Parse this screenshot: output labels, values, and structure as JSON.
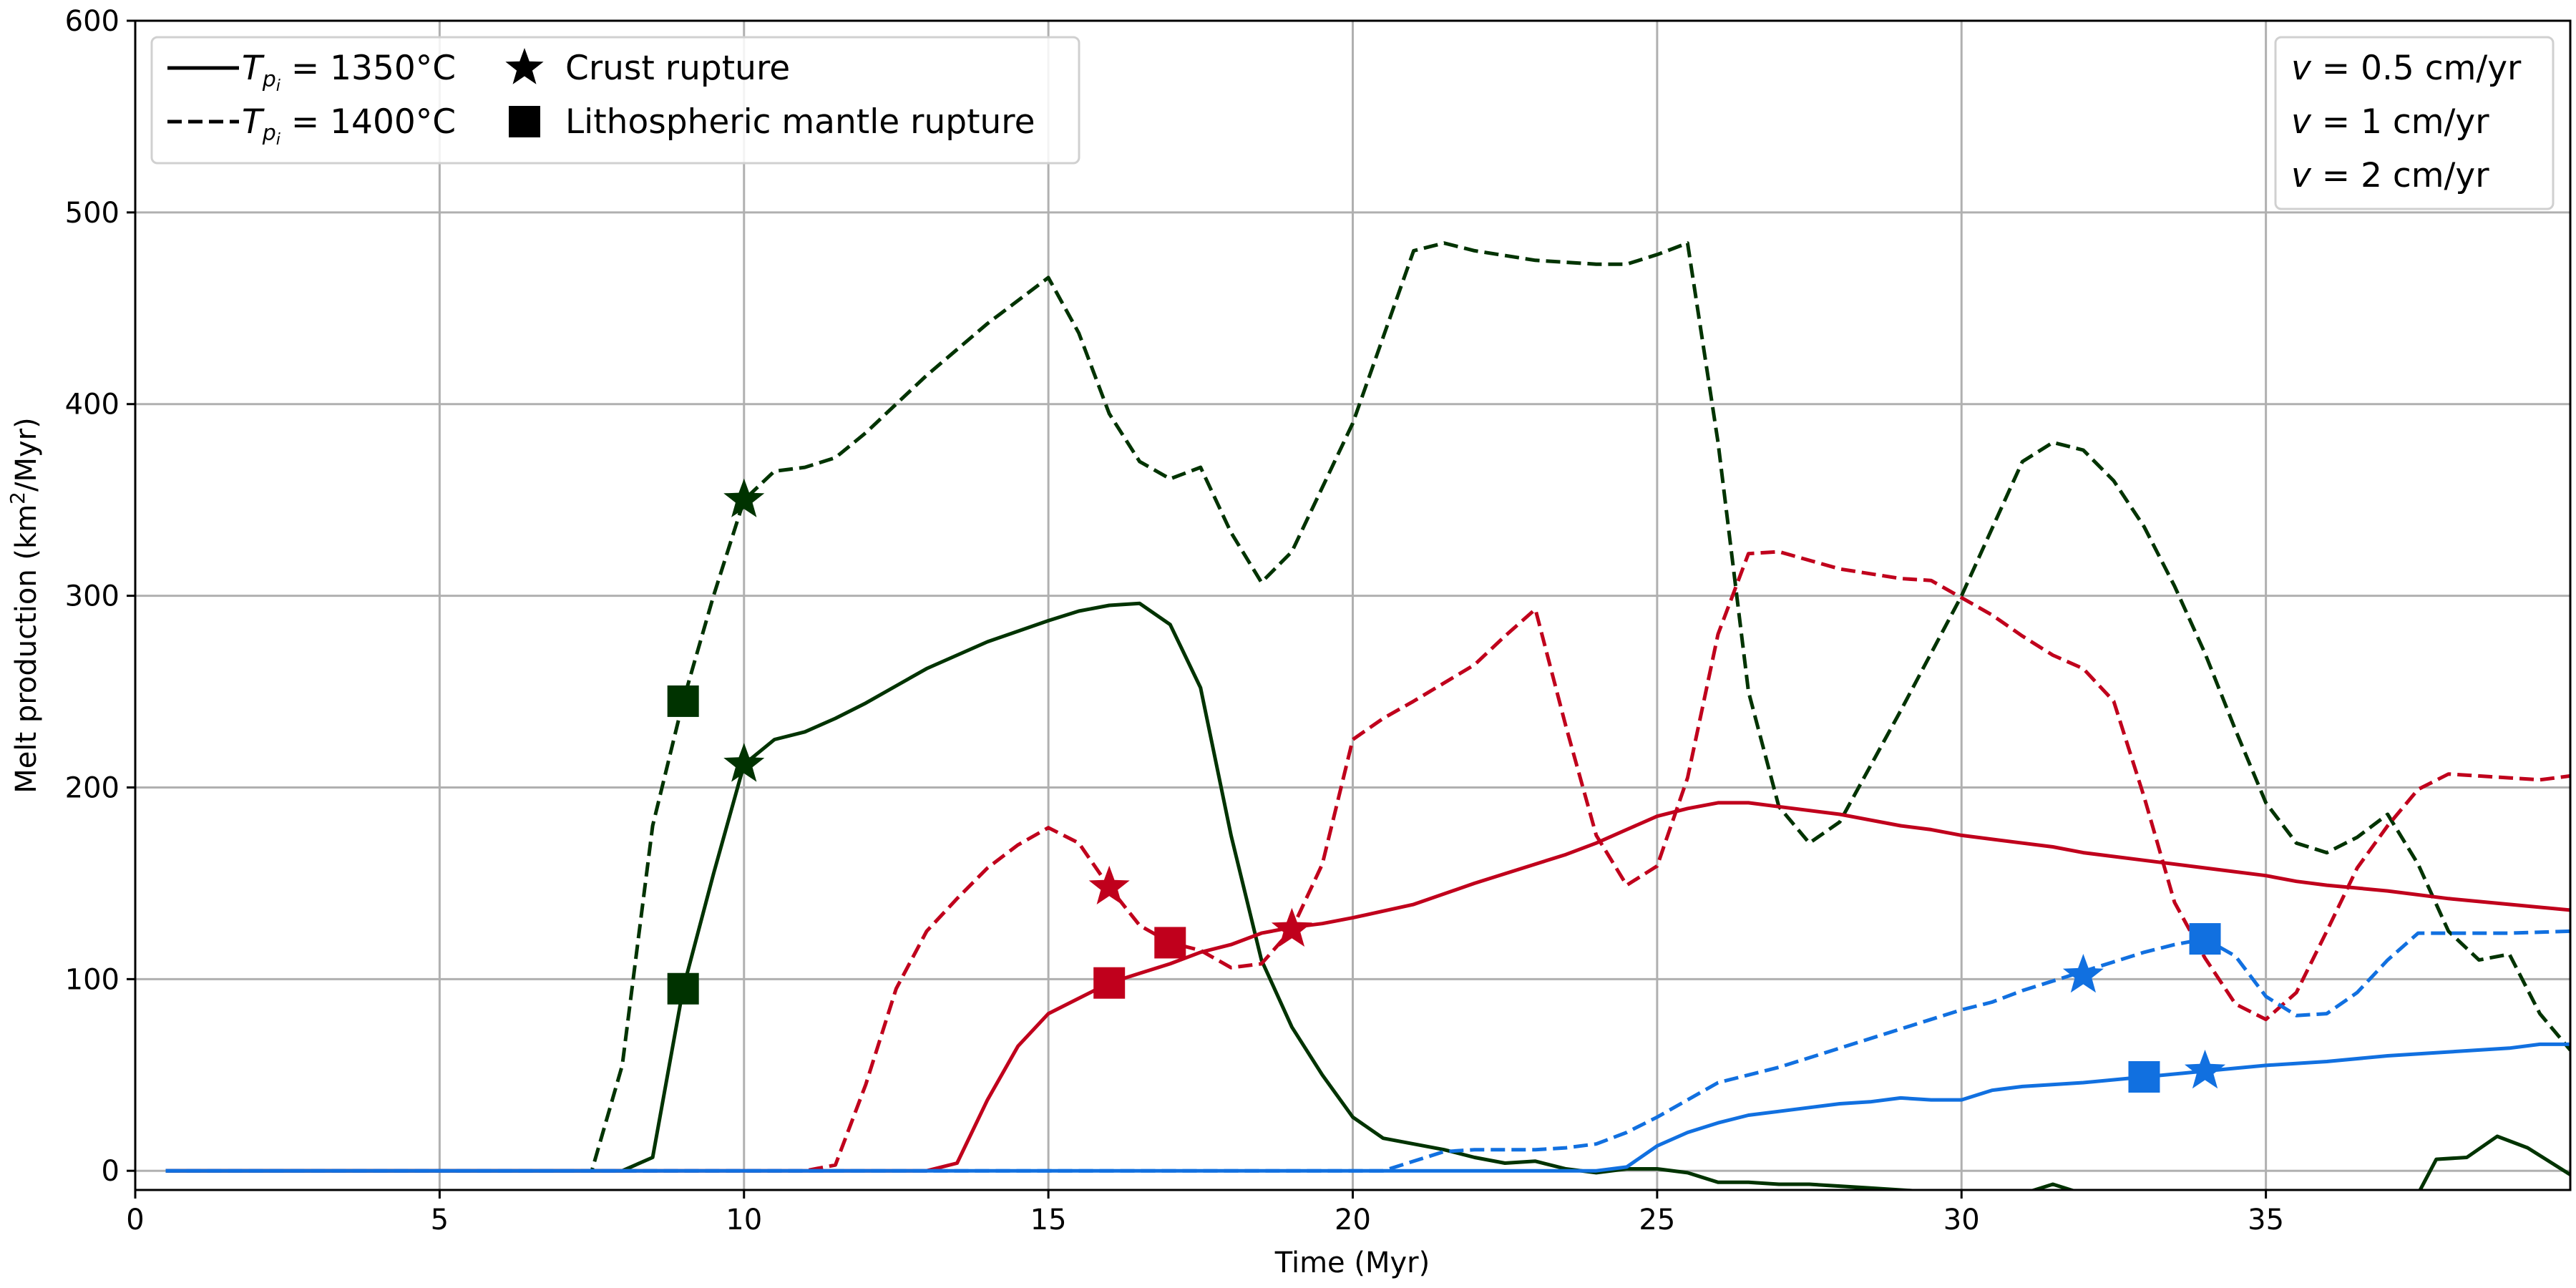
{
  "chart_data": {
    "type": "line",
    "xlabel": "Time (Myr)",
    "ylabel_prefix": "Melt production (km",
    "ylabel_sup": "2",
    "ylabel_suffix": "/Myr)",
    "xlim": [
      0,
      40
    ],
    "ylim": [
      -10,
      600
    ],
    "xticks": [
      0,
      5,
      10,
      15,
      20,
      25,
      30,
      35
    ],
    "yticks": [
      0,
      100,
      200,
      300,
      400,
      500,
      600
    ],
    "grid": true,
    "colors": {
      "slow": "#1170e0",
      "medium": "#c0001c",
      "fast": "#003300"
    },
    "legend_style": {
      "placement": "top-left",
      "solid_prefix": "T",
      "solid_sub": "p",
      "solid_subsub": "i",
      "solid_value": " = 1350°C",
      "dashed_prefix": "T",
      "dashed_sub": "p",
      "dashed_subsub": "i",
      "dashed_value": " = 1400°C",
      "star_label": "Crust rupture",
      "square_label": "Lithospheric mantle rupture"
    },
    "legend_velocity": {
      "placement": "top-right",
      "items": [
        {
          "var": "v",
          "rest": " = 0.5 cm/yr",
          "color_key": "slow"
        },
        {
          "var": "v",
          "rest": " = 1 cm/yr",
          "color_key": "medium"
        },
        {
          "var": "v",
          "rest": " = 2 cm/yr",
          "color_key": "fast"
        }
      ]
    },
    "series": [
      {
        "color_key": "fast",
        "dash": false,
        "points": [
          [
            0.5,
            0
          ],
          [
            7.5,
            0
          ],
          [
            8,
            0
          ],
          [
            8.5,
            7
          ],
          [
            9,
            95
          ],
          [
            9.5,
            155
          ],
          [
            10,
            212
          ],
          [
            10.5,
            225
          ],
          [
            11,
            229
          ],
          [
            11.5,
            236
          ],
          [
            12,
            244
          ],
          [
            12.5,
            253
          ],
          [
            13,
            262
          ],
          [
            14,
            276
          ],
          [
            15,
            287
          ],
          [
            15.5,
            292
          ],
          [
            16,
            295
          ],
          [
            16.5,
            296
          ],
          [
            17,
            285
          ],
          [
            17.5,
            252
          ],
          [
            18,
            175
          ],
          [
            18.5,
            110
          ],
          [
            19,
            75
          ],
          [
            19.5,
            50
          ],
          [
            20,
            28
          ],
          [
            20.5,
            17
          ],
          [
            21,
            14
          ],
          [
            21.5,
            11
          ],
          [
            22,
            7
          ],
          [
            22.5,
            4
          ],
          [
            23,
            5
          ],
          [
            23.5,
            1
          ],
          [
            24,
            -1
          ],
          [
            24.5,
            1
          ],
          [
            25,
            1
          ],
          [
            25.5,
            -1
          ],
          [
            26,
            -6
          ],
          [
            26.5,
            -6
          ],
          [
            27,
            -7
          ],
          [
            27.5,
            -7
          ],
          [
            28,
            -8
          ],
          [
            28.5,
            -9
          ],
          [
            29,
            -10
          ],
          [
            29.5,
            -11
          ],
          [
            30,
            -12
          ],
          [
            30.5,
            -12
          ],
          [
            31,
            -12
          ],
          [
            31.5,
            -7
          ],
          [
            32,
            -12
          ],
          [
            33,
            -14
          ],
          [
            35,
            -14
          ],
          [
            37.5,
            -12
          ],
          [
            37.8,
            6
          ],
          [
            38.3,
            7
          ],
          [
            38.8,
            18
          ],
          [
            39.3,
            12
          ],
          [
            40,
            -2
          ]
        ]
      },
      {
        "color_key": "fast",
        "dash": true,
        "points": [
          [
            0.5,
            0
          ],
          [
            7.5,
            0
          ],
          [
            8,
            55
          ],
          [
            8.5,
            180
          ],
          [
            9,
            245
          ],
          [
            9.5,
            300
          ],
          [
            10,
            350
          ],
          [
            10.5,
            365
          ],
          [
            11,
            367
          ],
          [
            11.5,
            372
          ],
          [
            12,
            385
          ],
          [
            12.5,
            400
          ],
          [
            13,
            415
          ],
          [
            14,
            442
          ],
          [
            15,
            466
          ],
          [
            15.5,
            437
          ],
          [
            16,
            395
          ],
          [
            16.5,
            370
          ],
          [
            17,
            361
          ],
          [
            17.5,
            367
          ],
          [
            18,
            333
          ],
          [
            18.5,
            307
          ],
          [
            19,
            323
          ],
          [
            20,
            390
          ],
          [
            21,
            480
          ],
          [
            21.5,
            484
          ],
          [
            22,
            480
          ],
          [
            23,
            475
          ],
          [
            24,
            473
          ],
          [
            24.5,
            473
          ],
          [
            25,
            478
          ],
          [
            25.5,
            484
          ],
          [
            26,
            380
          ],
          [
            26.5,
            250
          ],
          [
            27,
            190
          ],
          [
            27.5,
            171
          ],
          [
            28,
            182
          ],
          [
            29,
            240
          ],
          [
            30,
            300
          ],
          [
            31,
            370
          ],
          [
            31.5,
            380
          ],
          [
            32,
            376
          ],
          [
            32.5,
            360
          ],
          [
            33,
            336
          ],
          [
            33.5,
            305
          ],
          [
            34,
            270
          ],
          [
            34.5,
            230
          ],
          [
            35,
            192
          ],
          [
            35.5,
            171
          ],
          [
            36,
            166
          ],
          [
            36.5,
            174
          ],
          [
            37,
            186
          ],
          [
            37.5,
            160
          ],
          [
            38,
            125
          ],
          [
            38.5,
            110
          ],
          [
            39,
            113
          ],
          [
            39.5,
            82
          ],
          [
            40,
            63
          ]
        ]
      },
      {
        "color_key": "medium",
        "dash": false,
        "points": [
          [
            0.5,
            0
          ],
          [
            11,
            0
          ],
          [
            13,
            0
          ],
          [
            13.5,
            4
          ],
          [
            14,
            37
          ],
          [
            14.5,
            65
          ],
          [
            15,
            82
          ],
          [
            15.5,
            90
          ],
          [
            16,
            98
          ],
          [
            16.5,
            103
          ],
          [
            17,
            108
          ],
          [
            17.5,
            114
          ],
          [
            18,
            118
          ],
          [
            18.5,
            124
          ],
          [
            19,
            127
          ],
          [
            19.5,
            129
          ],
          [
            20,
            132
          ],
          [
            21,
            139
          ],
          [
            22,
            150
          ],
          [
            23,
            160
          ],
          [
            23.5,
            165
          ],
          [
            24,
            171
          ],
          [
            24.5,
            178
          ],
          [
            25,
            185
          ],
          [
            25.5,
            189
          ],
          [
            26,
            192
          ],
          [
            26.5,
            192
          ],
          [
            27,
            190
          ],
          [
            28,
            186
          ],
          [
            29,
            180
          ],
          [
            29.5,
            178
          ],
          [
            30,
            175
          ],
          [
            31,
            171
          ],
          [
            31.5,
            169
          ],
          [
            32,
            166
          ],
          [
            33,
            162
          ],
          [
            34,
            158
          ],
          [
            35,
            154
          ],
          [
            35.5,
            151
          ],
          [
            36,
            149
          ],
          [
            37,
            146
          ],
          [
            38,
            142
          ],
          [
            39,
            139
          ],
          [
            40,
            136
          ]
        ]
      },
      {
        "color_key": "medium",
        "dash": true,
        "points": [
          [
            0.5,
            0
          ],
          [
            11,
            0
          ],
          [
            11.5,
            3
          ],
          [
            12,
            45
          ],
          [
            12.5,
            95
          ],
          [
            13,
            125
          ],
          [
            13.5,
            142
          ],
          [
            14,
            158
          ],
          [
            14.5,
            170
          ],
          [
            15,
            179
          ],
          [
            15.5,
            171
          ],
          [
            16,
            148
          ],
          [
            16.5,
            128
          ],
          [
            17,
            119
          ],
          [
            17.5,
            115
          ],
          [
            18,
            106
          ],
          [
            18.5,
            108
          ],
          [
            19,
            126
          ],
          [
            19.5,
            160
          ],
          [
            20,
            225
          ],
          [
            20.5,
            236
          ],
          [
            21,
            245
          ],
          [
            22,
            264
          ],
          [
            22.5,
            279
          ],
          [
            23,
            293
          ],
          [
            23.5,
            232
          ],
          [
            24,
            175
          ],
          [
            24.5,
            149
          ],
          [
            25,
            159
          ],
          [
            25.5,
            205
          ],
          [
            26,
            280
          ],
          [
            26.5,
            322
          ],
          [
            27,
            323
          ],
          [
            28,
            314
          ],
          [
            29,
            309
          ],
          [
            29.5,
            308
          ],
          [
            30,
            299
          ],
          [
            30.5,
            290
          ],
          [
            31,
            279
          ],
          [
            31.5,
            269
          ],
          [
            32,
            262
          ],
          [
            32.5,
            245
          ],
          [
            33,
            195
          ],
          [
            33.5,
            140
          ],
          [
            34,
            111
          ],
          [
            34.5,
            87
          ],
          [
            35,
            79
          ],
          [
            35.5,
            93
          ],
          [
            36,
            125
          ],
          [
            36.5,
            158
          ],
          [
            37,
            180
          ],
          [
            37.5,
            199
          ],
          [
            38,
            207
          ],
          [
            38.5,
            206
          ],
          [
            39,
            205
          ],
          [
            39.5,
            204
          ],
          [
            40,
            206
          ]
        ]
      },
      {
        "color_key": "slow",
        "dash": false,
        "points": [
          [
            0.5,
            0
          ],
          [
            24,
            0
          ],
          [
            24.5,
            2
          ],
          [
            25,
            13
          ],
          [
            25.5,
            20
          ],
          [
            26,
            25
          ],
          [
            26.5,
            29
          ],
          [
            27,
            31
          ],
          [
            27.5,
            33
          ],
          [
            28,
            35
          ],
          [
            28.5,
            36
          ],
          [
            29,
            38
          ],
          [
            29.5,
            37
          ],
          [
            30,
            37
          ],
          [
            30.5,
            42
          ],
          [
            31,
            44
          ],
          [
            32,
            46
          ],
          [
            33,
            49
          ],
          [
            34,
            52
          ],
          [
            35,
            55
          ],
          [
            36,
            57
          ],
          [
            37,
            60
          ],
          [
            38,
            62
          ],
          [
            39,
            64
          ],
          [
            39.5,
            66
          ],
          [
            40,
            66
          ]
        ]
      },
      {
        "color_key": "slow",
        "dash": true,
        "points": [
          [
            0.5,
            0
          ],
          [
            20.5,
            0
          ],
          [
            21,
            5
          ],
          [
            21.5,
            10
          ],
          [
            22,
            11
          ],
          [
            23,
            11
          ],
          [
            23.5,
            12
          ],
          [
            24,
            14
          ],
          [
            24.5,
            20
          ],
          [
            25,
            28
          ],
          [
            25.5,
            37
          ],
          [
            26,
            46
          ],
          [
            27,
            54
          ],
          [
            28,
            64
          ],
          [
            29,
            74
          ],
          [
            30,
            84
          ],
          [
            30.5,
            88
          ],
          [
            31,
            94
          ],
          [
            32,
            104
          ],
          [
            32.5,
            109
          ],
          [
            33,
            114
          ],
          [
            33.5,
            118
          ],
          [
            34,
            121
          ],
          [
            34.5,
            112
          ],
          [
            35,
            91
          ],
          [
            35.5,
            81
          ],
          [
            36,
            82
          ],
          [
            36.5,
            93
          ],
          [
            37,
            110
          ],
          [
            37.5,
            124
          ],
          [
            38,
            124
          ],
          [
            39,
            124
          ],
          [
            40,
            125
          ]
        ]
      }
    ],
    "markers": [
      {
        "shape": "square",
        "color_key": "fast",
        "x": 9,
        "y": 245
      },
      {
        "shape": "square",
        "color_key": "fast",
        "x": 9,
        "y": 95
      },
      {
        "shape": "star",
        "color_key": "fast",
        "x": 10,
        "y": 350
      },
      {
        "shape": "star",
        "color_key": "fast",
        "x": 10,
        "y": 212
      },
      {
        "shape": "star",
        "color_key": "medium",
        "x": 16,
        "y": 148
      },
      {
        "shape": "square",
        "color_key": "medium",
        "x": 16,
        "y": 98
      },
      {
        "shape": "square",
        "color_key": "medium",
        "x": 17,
        "y": 119
      },
      {
        "shape": "star",
        "color_key": "medium",
        "x": 19,
        "y": 126
      },
      {
        "shape": "star",
        "color_key": "slow",
        "x": 32,
        "y": 102
      },
      {
        "shape": "square",
        "color_key": "slow",
        "x": 33,
        "y": 49
      },
      {
        "shape": "square",
        "color_key": "slow",
        "x": 34,
        "y": 121
      },
      {
        "shape": "star",
        "color_key": "slow",
        "x": 34,
        "y": 52
      }
    ]
  }
}
